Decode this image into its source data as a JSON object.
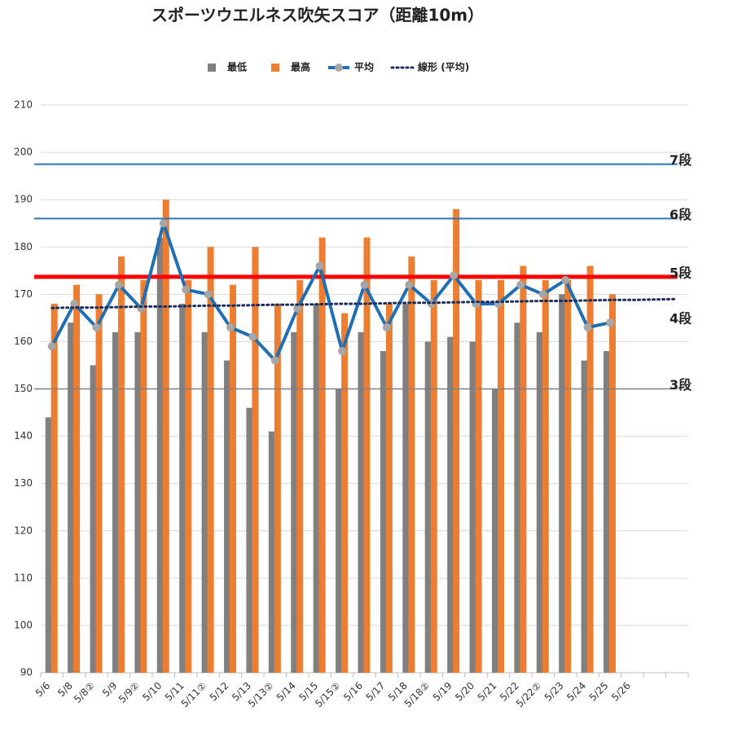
{
  "chart_data": {
    "type": "bar",
    "title": "スポーツウエルネス吹矢スコア（距離10m）",
    "categories": [
      "5/6",
      "5/8",
      "5/8②",
      "5/9",
      "5/9②",
      "5/10",
      "5/11",
      "5/11②",
      "5/12",
      "5/13",
      "5/13②",
      "5/14",
      "5/15",
      "5/15②",
      "5/16",
      "5/17",
      "5/18",
      "5/18②",
      "5/19",
      "5/20",
      "5/21",
      "5/22",
      "5/22②",
      "5/23",
      "5/24",
      "5/25",
      "5/26",
      null,
      null
    ],
    "series": [
      {
        "name": "最低",
        "color": "#808080",
        "kind": "bar",
        "values": [
          144,
          164,
          155,
          162,
          162,
          182,
          168,
          162,
          156,
          146,
          141,
          162,
          168,
          150,
          162,
          158,
          168,
          160,
          161,
          160,
          150,
          164,
          162,
          170,
          156,
          158,
          null,
          null,
          null
        ]
      },
      {
        "name": "最高",
        "color": "#ed7d31",
        "kind": "bar",
        "values": [
          168,
          172,
          170,
          178,
          173,
          190,
          173,
          180,
          172,
          180,
          168,
          173,
          182,
          166,
          182,
          168,
          178,
          173,
          188,
          173,
          173,
          176,
          173,
          173,
          176,
          170,
          null,
          null,
          null
        ]
      },
      {
        "name": "平均",
        "color": "#1f6fb5",
        "marker_color": "#a6a6a6",
        "kind": "line",
        "values": [
          159,
          168,
          163,
          172,
          167,
          185,
          171,
          170,
          163,
          161,
          156,
          167,
          176,
          158,
          172,
          163,
          172,
          168,
          174,
          168,
          168,
          172,
          170,
          173,
          163,
          164,
          null,
          null,
          null
        ]
      },
      {
        "name": "線形 (平均)",
        "color": "#1f2d5a",
        "kind": "trend",
        "values": [
          167.1,
          167.2,
          167.2,
          167.3,
          167.4,
          167.4,
          167.5,
          167.6,
          167.6,
          167.7,
          167.8,
          167.8,
          167.9,
          168.0,
          168.0,
          168.1,
          168.2,
          168.2,
          168.3,
          168.4,
          168.4,
          168.5,
          168.6,
          168.6,
          168.7,
          168.8,
          168.8,
          168.9,
          169.0
        ]
      }
    ],
    "reference_lines": [
      {
        "label": "7段",
        "value": 197.5,
        "color": "#2e75b6",
        "label_color": "#222",
        "width": 2,
        "line": true
      },
      {
        "label": "6段",
        "value": 186,
        "color": "#2e75b6",
        "label_color": "#222",
        "width": 2,
        "line": true
      },
      {
        "label": "5段",
        "value": 173.7,
        "color": "#ff0000",
        "label_color": "#2e75b6",
        "width": 5,
        "line": true
      },
      {
        "label": "4段",
        "value": 164,
        "color": "#222",
        "label_color": "#222",
        "width": 0,
        "line": false
      },
      {
        "label": "3段",
        "value": 150,
        "color": "#808080",
        "label_color": "#222",
        "width": 1.5,
        "line": true
      }
    ],
    "ylim": [
      90,
      210
    ],
    "yticks": [
      90,
      100,
      110,
      120,
      130,
      140,
      150,
      160,
      170,
      180,
      190,
      200,
      210
    ],
    "grid": true,
    "legend": "top"
  }
}
